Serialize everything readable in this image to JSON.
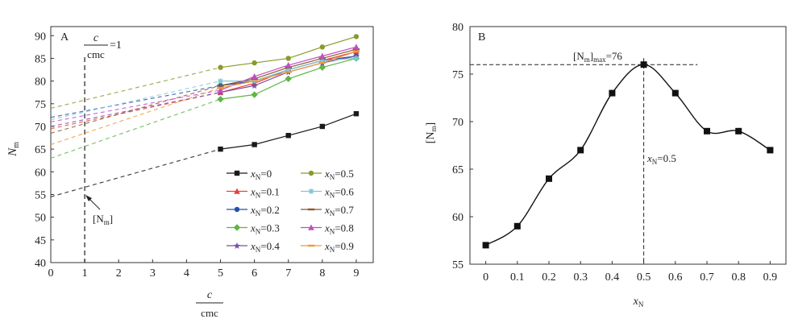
{
  "chart_data": [
    {
      "type": "scatter",
      "panel_label": "A",
      "xlabel_num": "c",
      "xlabel_den": "cmc",
      "ylabel": "N",
      "ylabel_sub": "m",
      "xlim": [
        0,
        9.5
      ],
      "ylim": [
        40,
        92
      ],
      "xticks": [
        0,
        1,
        2,
        3,
        4,
        5,
        6,
        7,
        8,
        9
      ],
      "yticks": [
        40,
        45,
        50,
        55,
        60,
        65,
        70,
        75,
        80,
        85,
        90
      ],
      "grid": false,
      "legend_position": "bottom-right",
      "annotation_top": {
        "num": "c",
        "den": "cmc",
        "suffix": "=1"
      },
      "annotation_arrow": {
        "text": "[N",
        "sub": "m",
        "close": "]"
      },
      "vline_x": 1,
      "x": [
        5,
        6,
        7,
        8,
        9
      ],
      "series": [
        {
          "name": "0",
          "color": "#1a1a1a",
          "marker": "square",
          "values": [
            65,
            66,
            68,
            70,
            72.8
          ],
          "intercept": 54.5
        },
        {
          "name": "0.1",
          "color": "#e8403a",
          "marker": "triangle",
          "values": [
            77.5,
            79.5,
            82.5,
            84.5,
            86.5
          ],
          "intercept": 69.5
        },
        {
          "name": "0.2",
          "color": "#2452a8",
          "marker": "circle",
          "values": [
            79,
            80,
            82.5,
            84.5,
            85.5
          ],
          "intercept": 72
        },
        {
          "name": "0.3",
          "color": "#5fb548",
          "marker": "diamond",
          "values": [
            76,
            77,
            80.5,
            83,
            85
          ],
          "intercept": 63
        },
        {
          "name": "0.4",
          "color": "#7b4fa8",
          "marker": "star",
          "values": [
            77.5,
            79,
            82,
            84,
            85.5
          ],
          "intercept": 70
        },
        {
          "name": "0.5",
          "color": "#8a9a2c",
          "marker": "circle",
          "values": [
            83,
            84,
            85,
            87.5,
            89.8
          ],
          "intercept": 74
        },
        {
          "name": "0.6",
          "color": "#7fc8d8",
          "marker": "asterisk",
          "values": [
            80,
            80,
            82.5,
            84.5,
            85
          ],
          "intercept": 71.5
        },
        {
          "name": "0.7",
          "color": "#8b5a2b",
          "marker": "dash",
          "values": [
            79,
            80.5,
            83,
            85,
            87
          ],
          "intercept": 68.5
        },
        {
          "name": "0.8",
          "color": "#c050c0",
          "marker": "triangle",
          "values": [
            78,
            81,
            83.5,
            85.5,
            87.5
          ],
          "intercept": 71
        },
        {
          "name": "0.9",
          "color": "#f09a38",
          "marker": "dash",
          "values": [
            78.5,
            80,
            82,
            84,
            86.5
          ],
          "intercept": 66
        }
      ],
      "legend_var": "x",
      "legend_var_sub": "N"
    },
    {
      "type": "line",
      "panel_label": "B",
      "xlabel": "x",
      "xlabel_sub": "N",
      "ylabel": "[N",
      "ylabel_sub": "m",
      "ylabel_close": "]",
      "xlim": [
        -0.05,
        0.95
      ],
      "ylim": [
        55,
        80
      ],
      "xticks": [
        0,
        0.1,
        0.2,
        0.3,
        0.4,
        0.5,
        0.6,
        0.7,
        0.8,
        0.9
      ],
      "yticks": [
        55,
        60,
        65,
        70,
        75,
        80
      ],
      "x": [
        0,
        0.1,
        0.2,
        0.3,
        0.4,
        0.5,
        0.6,
        0.7,
        0.8,
        0.9
      ],
      "values": [
        57,
        59,
        64,
        67,
        73,
        76,
        73,
        69,
        69,
        67
      ],
      "grid": false,
      "annotation_max": {
        "text1": "[N",
        "sub1": "m",
        "text2": "]",
        "sub2": "max",
        "text3": "=76"
      },
      "annotation_x": {
        "text": "x",
        "sub": "N",
        "rest": "=0.5"
      },
      "max_x": 0.5,
      "max_y": 76
    }
  ]
}
